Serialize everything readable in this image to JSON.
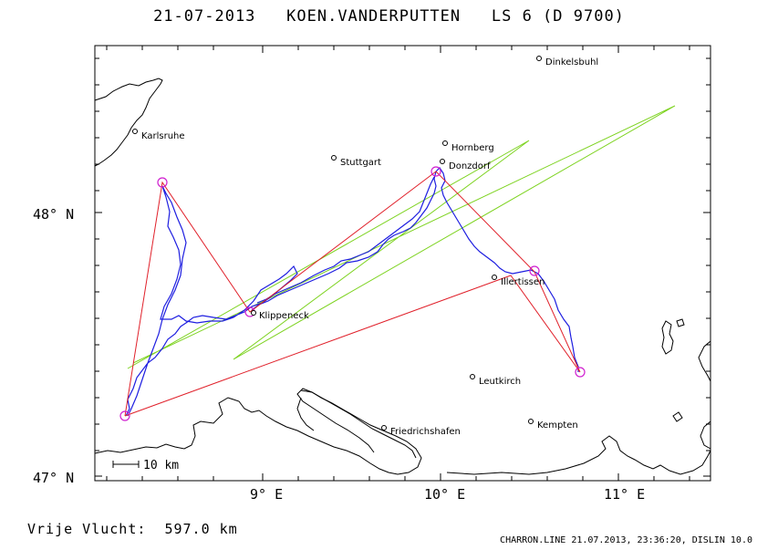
{
  "header": {
    "date": "21-07-2013",
    "pilot": "KOEN.VANDERPUTTEN",
    "glider": "LS 6 (D 9700)"
  },
  "axes": {
    "lat_labels": [
      "48° N",
      "47° N"
    ],
    "lon_labels": [
      "9° E",
      "10° E",
      "11° E"
    ]
  },
  "cities": [
    {
      "name": "Dinkelsbuhl"
    },
    {
      "name": "Karlsruhe"
    },
    {
      "name": "Hornberg"
    },
    {
      "name": "Stuttgart"
    },
    {
      "name": "Donzdorf"
    },
    {
      "name": "Illertissen"
    },
    {
      "name": "Klippeneck"
    },
    {
      "name": "Leutkirch"
    },
    {
      "name": "Friedrichshafen"
    },
    {
      "name": "Kempten"
    }
  ],
  "scale_bar": {
    "label": "10 km"
  },
  "footer": {
    "distance_label": "Vrije Vlucht:",
    "distance_value": "597.0 km",
    "credit": "CHARRON.LINE 21.07.2013, 23:36:20, DISLIN 10.0"
  },
  "colors": {
    "task_line": "#e0202a",
    "track": "#1e1ee0",
    "extension": "#7ed321",
    "turnpoint": "#d020d0",
    "coast": "#000000"
  }
}
